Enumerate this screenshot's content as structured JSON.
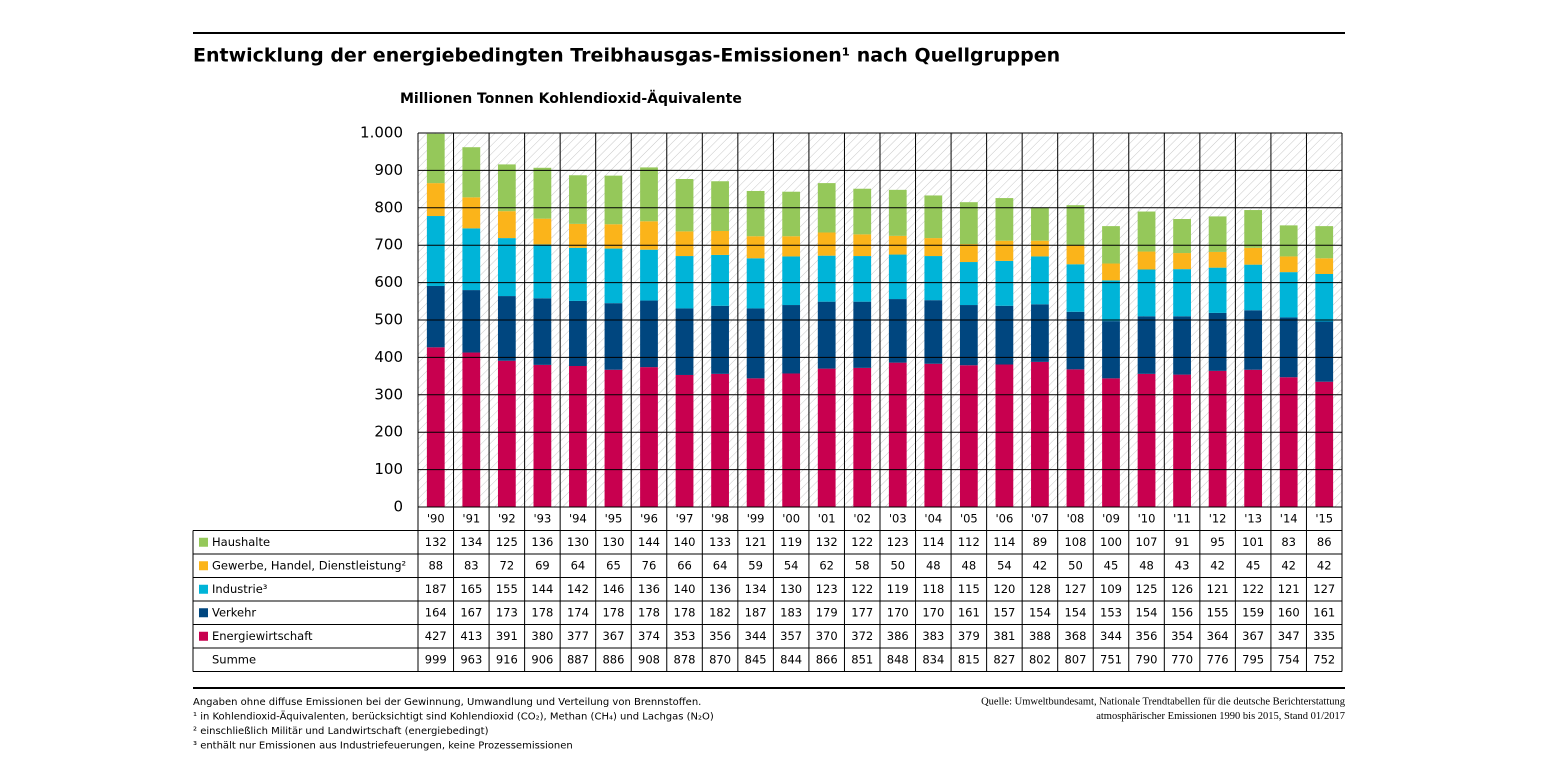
{
  "chart_data": {
    "type": "stacked-bar",
    "title": "Entwicklung der energiebedingten Treibhausgas-Emissionen¹ nach Quellgruppen",
    "y_axis_label": "Millionen Tonnen Kohlendioxid-Äquivalente",
    "categories": [
      "'90",
      "'91",
      "'92",
      "'93",
      "'94",
      "'95",
      "'96",
      "'97",
      "'98",
      "'99",
      "'00",
      "'01",
      "'02",
      "'03",
      "'04",
      "'05",
      "'06",
      "'07",
      "'08",
      "'09",
      "'10",
      "'11",
      "'12",
      "'13",
      "'14",
      "'15"
    ],
    "series": [
      {
        "name": "Energiewirtschaft",
        "color": "#c8004f",
        "values": [
          427,
          413,
          391,
          380,
          377,
          367,
          374,
          353,
          356,
          344,
          357,
          370,
          372,
          386,
          383,
          379,
          381,
          388,
          368,
          344,
          356,
          354,
          364,
          367,
          347,
          335
        ]
      },
      {
        "name": "Verkehr",
        "color": "#00467f",
        "values": [
          164,
          167,
          173,
          178,
          174,
          178,
          178,
          178,
          182,
          187,
          183,
          179,
          177,
          170,
          170,
          161,
          157,
          154,
          154,
          153,
          154,
          156,
          155,
          159,
          160,
          161
        ]
      },
      {
        "name": "Industrie³",
        "color": "#00b4d8",
        "values": [
          187,
          165,
          155,
          144,
          142,
          146,
          136,
          140,
          136,
          134,
          130,
          123,
          122,
          119,
          118,
          115,
          120,
          128,
          127,
          109,
          125,
          126,
          121,
          122,
          121,
          127
        ]
      },
      {
        "name": "Gewerbe, Handel, Dienstleistung²",
        "color": "#fbb41a",
        "values": [
          88,
          83,
          72,
          69,
          64,
          65,
          76,
          66,
          64,
          59,
          54,
          62,
          58,
          50,
          48,
          48,
          54,
          42,
          50,
          45,
          48,
          43,
          42,
          45,
          42,
          42
        ]
      },
      {
        "name": "Haushalte",
        "color": "#95c85a",
        "values": [
          132,
          134,
          125,
          136,
          130,
          130,
          144,
          140,
          133,
          121,
          119,
          132,
          122,
          123,
          114,
          112,
          114,
          89,
          108,
          100,
          107,
          91,
          95,
          101,
          83,
          86
        ]
      }
    ],
    "totals_label": "Summe",
    "totals": [
      999,
      963,
      916,
      906,
      887,
      886,
      908,
      878,
      870,
      845,
      844,
      866,
      851,
      848,
      834,
      815,
      827,
      802,
      807,
      751,
      790,
      770,
      776,
      795,
      754,
      752
    ],
    "ylim": [
      0,
      1000
    ],
    "yticks": [
      0,
      100,
      200,
      300,
      400,
      500,
      600,
      700,
      800,
      900,
      {
        "value": 1000,
        "label": "1.000"
      }
    ],
    "grid": true,
    "notes": [
      "Angaben ohne diffuse Emissionen bei der Gewinnung, Umwandlung und Verteilung von Brennstoffen.",
      "¹ in Kohlendioxid-Äquivalenten, berücksichtigt sind Kohlendioxid (CO₂), Methan (CH₄) und Lachgas (N₂O)",
      "² einschließlich Militär und Landwirtschaft (energiebedingt)",
      "³ enthält nur Emissionen aus Industriefeuerungen, keine Prozessemissionen"
    ],
    "source": [
      "Quelle: Umweltbundesamt, Nationale Trendtabellen für die deutsche Berichterstattung",
      "atmosphärischer Emissionen 1990 bis 2015, Stand 01/2017"
    ]
  }
}
